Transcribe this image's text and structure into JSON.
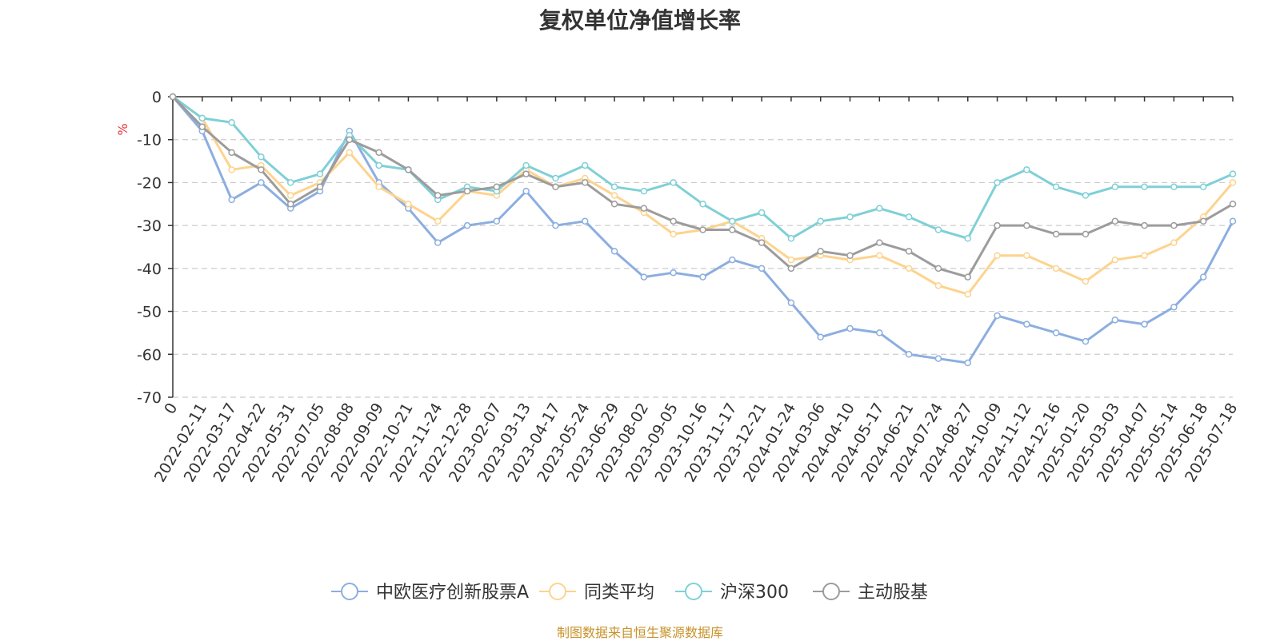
{
  "chart_data": {
    "type": "line",
    "title": "复权单位净值增长率",
    "ylabel": "%",
    "ylim": [
      -70,
      0
    ],
    "yticks": [
      0,
      -10,
      -20,
      -30,
      -40,
      -50,
      -60,
      -70
    ],
    "grid": true,
    "legend_position": "bottom",
    "x_labels": [
      "0",
      "2022-02-11",
      "2022-03-17",
      "2022-04-22",
      "2022-05-31",
      "2022-07-05",
      "2022-08-08",
      "2022-09-09",
      "2022-10-21",
      "2022-11-24",
      "2022-12-28",
      "2023-02-07",
      "2023-03-13",
      "2023-04-17",
      "2023-05-24",
      "2023-06-29",
      "2023-08-02",
      "2023-09-05",
      "2023-10-16",
      "2023-11-17",
      "2023-12-21",
      "2024-01-24",
      "2024-03-06",
      "2024-04-10",
      "2024-05-17",
      "2024-06-21",
      "2024-07-24",
      "2024-08-27",
      "2024-10-09",
      "2024-11-12",
      "2024-12-16",
      "2025-01-20",
      "2025-03-03",
      "2025-04-07",
      "2025-05-14",
      "2025-06-18",
      "2025-07-18"
    ],
    "series": [
      {
        "name": "中欧医疗创新股票A",
        "color": "#8caee0",
        "values": [
          0,
          -8,
          -24,
          -20,
          -26,
          -22,
          -8,
          -20,
          -26,
          -34,
          -30,
          -29,
          -22,
          -30,
          -29,
          -36,
          -42,
          -41,
          -42,
          -38,
          -40,
          -48,
          -56,
          -54,
          -55,
          -60,
          -61,
          -62,
          -51,
          -53,
          -55,
          -57,
          -52,
          -53,
          -49,
          -42,
          -29
        ]
      },
      {
        "name": "同类平均",
        "color": "#fdd38e",
        "values": [
          0,
          -5,
          -17,
          -16,
          -23,
          -20,
          -13,
          -21,
          -25,
          -29,
          -22,
          -23,
          -17,
          -21,
          -19,
          -23,
          -27,
          -32,
          -31,
          -29,
          -33,
          -38,
          -37,
          -38,
          -37,
          -40,
          -44,
          -46,
          -37,
          -37,
          -40,
          -43,
          -38,
          -37,
          -34,
          -28,
          -20
        ]
      },
      {
        "name": "沪深300",
        "color": "#7fd0d6",
        "values": [
          0,
          -5,
          -6,
          -14,
          -20,
          -18,
          -9,
          -16,
          -17,
          -24,
          -21,
          -22,
          -16,
          -19,
          -16,
          -21,
          -22,
          -20,
          -25,
          -29,
          -27,
          -33,
          -29,
          -28,
          -26,
          -28,
          -31,
          -33,
          -20,
          -17,
          -21,
          -23,
          -21,
          -21,
          -21,
          -21,
          -18
        ]
      },
      {
        "name": "主动股基",
        "color": "#9c9c9c",
        "values": [
          0,
          -7,
          -13,
          -17,
          -25,
          -21,
          -10,
          -13,
          -17,
          -23,
          -22,
          -21,
          -18,
          -21,
          -20,
          -25,
          -26,
          -29,
          -31,
          -31,
          -34,
          -40,
          -36,
          -37,
          -34,
          -36,
          -40,
          -42,
          -30,
          -30,
          -32,
          -32,
          -29,
          -30,
          -30,
          -29,
          -25
        ]
      }
    ]
  },
  "footer_note": "制图数据来自恒生聚源数据库"
}
